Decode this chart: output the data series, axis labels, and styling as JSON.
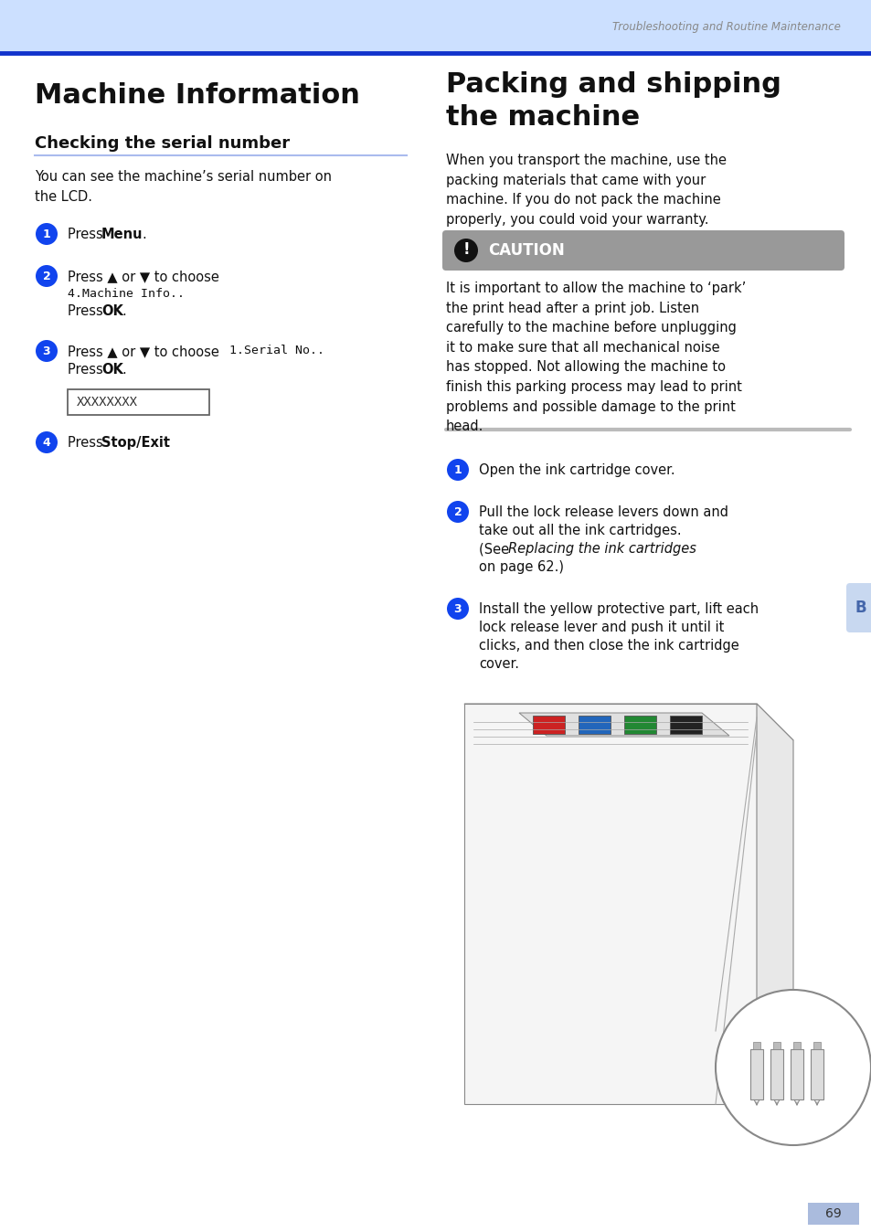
{
  "page_bg": "#ffffff",
  "header_bg": "#cce0ff",
  "header_line_color": "#1133cc",
  "header_text": "Troubleshooting and Routine Maintenance",
  "header_text_color": "#888888",
  "title_left": "Machine Information",
  "subtitle_left": "Checking the serial number",
  "subtitle_line_color": "#aabbee",
  "blue_circle_color": "#1144ee",
  "lcd_text": "XXXXXXXX",
  "right_title_line1": "Packing and shipping",
  "right_title_line2": "the machine",
  "right_body": "When you transport the machine, use the\npacking materials that came with your\nmachine. If you do not pack the machine\nproperly, you could void your warranty.",
  "caution_bg": "#999999",
  "caution_text_color": "#ffffff",
  "caution_label": "CAUTION",
  "caution_body": "It is important to allow the machine to ‘park’\nthe print head after a print job. Listen\ncarefully to the machine before unplugging\nit to make sure that all mechanical noise\nhas stopped. Not allowing the machine to\nfinish this parking process may lead to print\nproblems and possible damage to the print\nhead.",
  "right_step1": "Open the ink cartridge cover.",
  "right_step2_l1": "Pull the lock release levers down and",
  "right_step2_l2": "take out all the ink cartridges.",
  "right_step2_l3": "(See ",
  "right_step2_italic": "Replacing the ink cartridges",
  "right_step2_l4": "on page 62.)",
  "right_step3_l1": "Install the yellow protective part, lift each",
  "right_step3_l2": "lock release lever and push it until it",
  "right_step3_l3": "clicks, and then close the ink cartridge",
  "right_step3_l4": "cover.",
  "tab_label": "B",
  "tab_bg": "#c8d8f0",
  "page_number": "69",
  "page_num_bg": "#aabbdd",
  "sep_color": "#bbbbbb"
}
